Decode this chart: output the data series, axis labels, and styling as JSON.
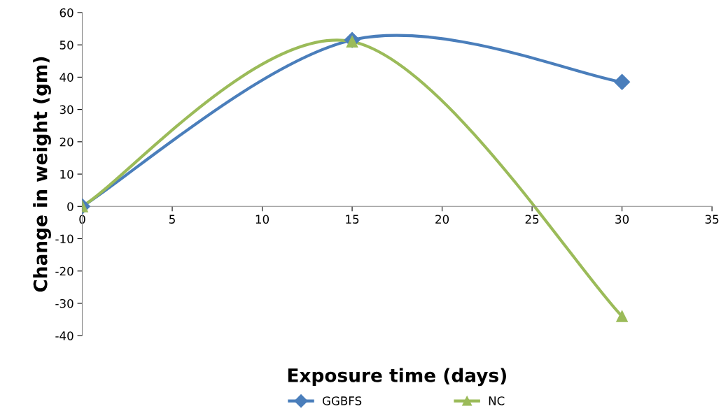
{
  "chart_data": {
    "type": "line",
    "xlabel": "Exposure time (days)",
    "ylabel": "Change in weight (gm)",
    "x": [
      0,
      15,
      30
    ],
    "series": [
      {
        "name": "GGBFS",
        "color": "#4a7ebb",
        "marker": "diamond",
        "values": [
          0,
          51.5,
          38.5
        ]
      },
      {
        "name": "NC",
        "color": "#9bbb59",
        "marker": "triangle",
        "values": [
          0,
          51,
          -34
        ]
      }
    ],
    "xlim": [
      0,
      35
    ],
    "xticks": [
      0,
      5,
      10,
      15,
      20,
      25,
      30,
      35
    ],
    "ylim": [
      -40,
      60
    ],
    "yticks": [
      -40,
      -30,
      -20,
      -10,
      0,
      10,
      20,
      30,
      40,
      50,
      60
    ],
    "grid": false,
    "legend": "bottom",
    "line_style": "solid"
  }
}
